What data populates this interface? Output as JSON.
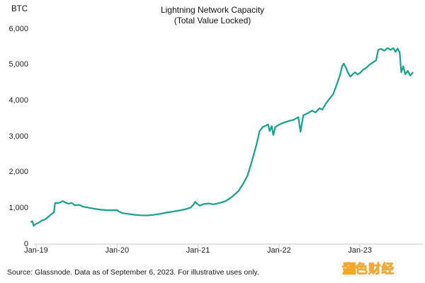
{
  "header": {
    "unit_label": "BTC",
    "title": "Lightning Network Capacity",
    "subtitle": "(Total Value Locked)"
  },
  "footer": {
    "source_note": "Source: Glassnode. Data as of September 6, 2023. For illustrative uses only.",
    "watermark": {
      "brand_text": "金色财经",
      "brand_color": "#F7A823"
    }
  },
  "chart_data": {
    "type": "line",
    "title": "Lightning Network Capacity",
    "subtitle": "(Total Value Locked)",
    "ylabel": "BTC",
    "grid": false,
    "legend_position": "none",
    "line_color": "#14a389",
    "axis_color": "#c9c9c9",
    "x_axis": {
      "unit": "years since Jan-2019",
      "min": -0.026,
      "max": 4.777,
      "tick_values": [
        0,
        1,
        2,
        3,
        4
      ],
      "tick_labels": [
        "Jan-19",
        "Jan-20",
        "Jan-21",
        "Jan-22",
        "Jan-23"
      ]
    },
    "y_axis": {
      "min": 0,
      "max": 6000,
      "tick_values": [
        6000,
        5000,
        4000,
        3000,
        2000,
        1000,
        0
      ],
      "tick_labels": [
        "6,000",
        "5,000",
        "4,000",
        "3,000",
        "2,000",
        "1,000",
        "0"
      ]
    },
    "series": [
      {
        "name": "Lightning Network capacity (BTC)",
        "points": [
          [
            -0.06,
            620
          ],
          [
            -0.045,
            640
          ],
          [
            -0.03,
            510
          ],
          [
            -0.01,
            555
          ],
          [
            0.03,
            595
          ],
          [
            0.07,
            655
          ],
          [
            0.12,
            700
          ],
          [
            0.16,
            780
          ],
          [
            0.2,
            855
          ],
          [
            0.22,
            880
          ],
          [
            0.235,
            1150
          ],
          [
            0.27,
            1140
          ],
          [
            0.3,
            1165
          ],
          [
            0.33,
            1200
          ],
          [
            0.36,
            1160
          ],
          [
            0.4,
            1125
          ],
          [
            0.44,
            1150
          ],
          [
            0.48,
            1080
          ],
          [
            0.53,
            1095
          ],
          [
            0.58,
            1045
          ],
          [
            0.65,
            1015
          ],
          [
            0.72,
            985
          ],
          [
            0.8,
            960
          ],
          [
            0.88,
            945
          ],
          [
            0.96,
            945
          ],
          [
            1.0,
            950
          ],
          [
            1.03,
            898
          ],
          [
            1.07,
            862
          ],
          [
            1.13,
            845
          ],
          [
            1.21,
            820
          ],
          [
            1.29,
            803
          ],
          [
            1.37,
            800
          ],
          [
            1.45,
            815
          ],
          [
            1.53,
            842
          ],
          [
            1.61,
            878
          ],
          [
            1.69,
            905
          ],
          [
            1.77,
            938
          ],
          [
            1.85,
            975
          ],
          [
            1.91,
            1020
          ],
          [
            1.945,
            1105
          ],
          [
            1.965,
            1180
          ],
          [
            1.99,
            1125
          ],
          [
            2.02,
            1072
          ],
          [
            2.07,
            1118
          ],
          [
            2.13,
            1132
          ],
          [
            2.19,
            1110
          ],
          [
            2.26,
            1142
          ],
          [
            2.34,
            1198
          ],
          [
            2.42,
            1318
          ],
          [
            2.5,
            1480
          ],
          [
            2.56,
            1695
          ],
          [
            2.61,
            1905
          ],
          [
            2.66,
            2270
          ],
          [
            2.72,
            2760
          ],
          [
            2.76,
            3150
          ],
          [
            2.8,
            3268
          ],
          [
            2.84,
            3305
          ],
          [
            2.865,
            3340
          ],
          [
            2.885,
            3152
          ],
          [
            2.91,
            3290
          ],
          [
            2.93,
            3042
          ],
          [
            2.955,
            3268
          ],
          [
            3.0,
            3330
          ],
          [
            3.06,
            3388
          ],
          [
            3.12,
            3432
          ],
          [
            3.18,
            3468
          ],
          [
            3.24,
            3540
          ],
          [
            3.265,
            3132
          ],
          [
            3.3,
            3590
          ],
          [
            3.36,
            3658
          ],
          [
            3.41,
            3722
          ],
          [
            3.45,
            3672
          ],
          [
            3.5,
            3790
          ],
          [
            3.535,
            3752
          ],
          [
            3.58,
            3928
          ],
          [
            3.62,
            4042
          ],
          [
            3.67,
            4188
          ],
          [
            3.71,
            4428
          ],
          [
            3.75,
            4688
          ],
          [
            3.78,
            4958
          ],
          [
            3.8,
            5032
          ],
          [
            3.825,
            4928
          ],
          [
            3.85,
            4790
          ],
          [
            3.88,
            4672
          ],
          [
            3.91,
            4738
          ],
          [
            3.94,
            4792
          ],
          [
            3.97,
            4732
          ],
          [
            4.0,
            4772
          ],
          [
            4.04,
            4868
          ],
          [
            4.08,
            4922
          ],
          [
            4.12,
            5008
          ],
          [
            4.16,
            5068
          ],
          [
            4.2,
            5128
          ],
          [
            4.225,
            5418
          ],
          [
            4.26,
            5448
          ],
          [
            4.3,
            5392
          ],
          [
            4.34,
            5468
          ],
          [
            4.38,
            5418
          ],
          [
            4.41,
            5468
          ],
          [
            4.44,
            5362
          ],
          [
            4.465,
            5458
          ],
          [
            4.49,
            5348
          ],
          [
            4.51,
            4792
          ],
          [
            4.535,
            4958
          ],
          [
            4.56,
            4738
          ],
          [
            4.59,
            4832
          ],
          [
            4.62,
            4702
          ],
          [
            4.65,
            4782
          ]
        ]
      }
    ]
  }
}
